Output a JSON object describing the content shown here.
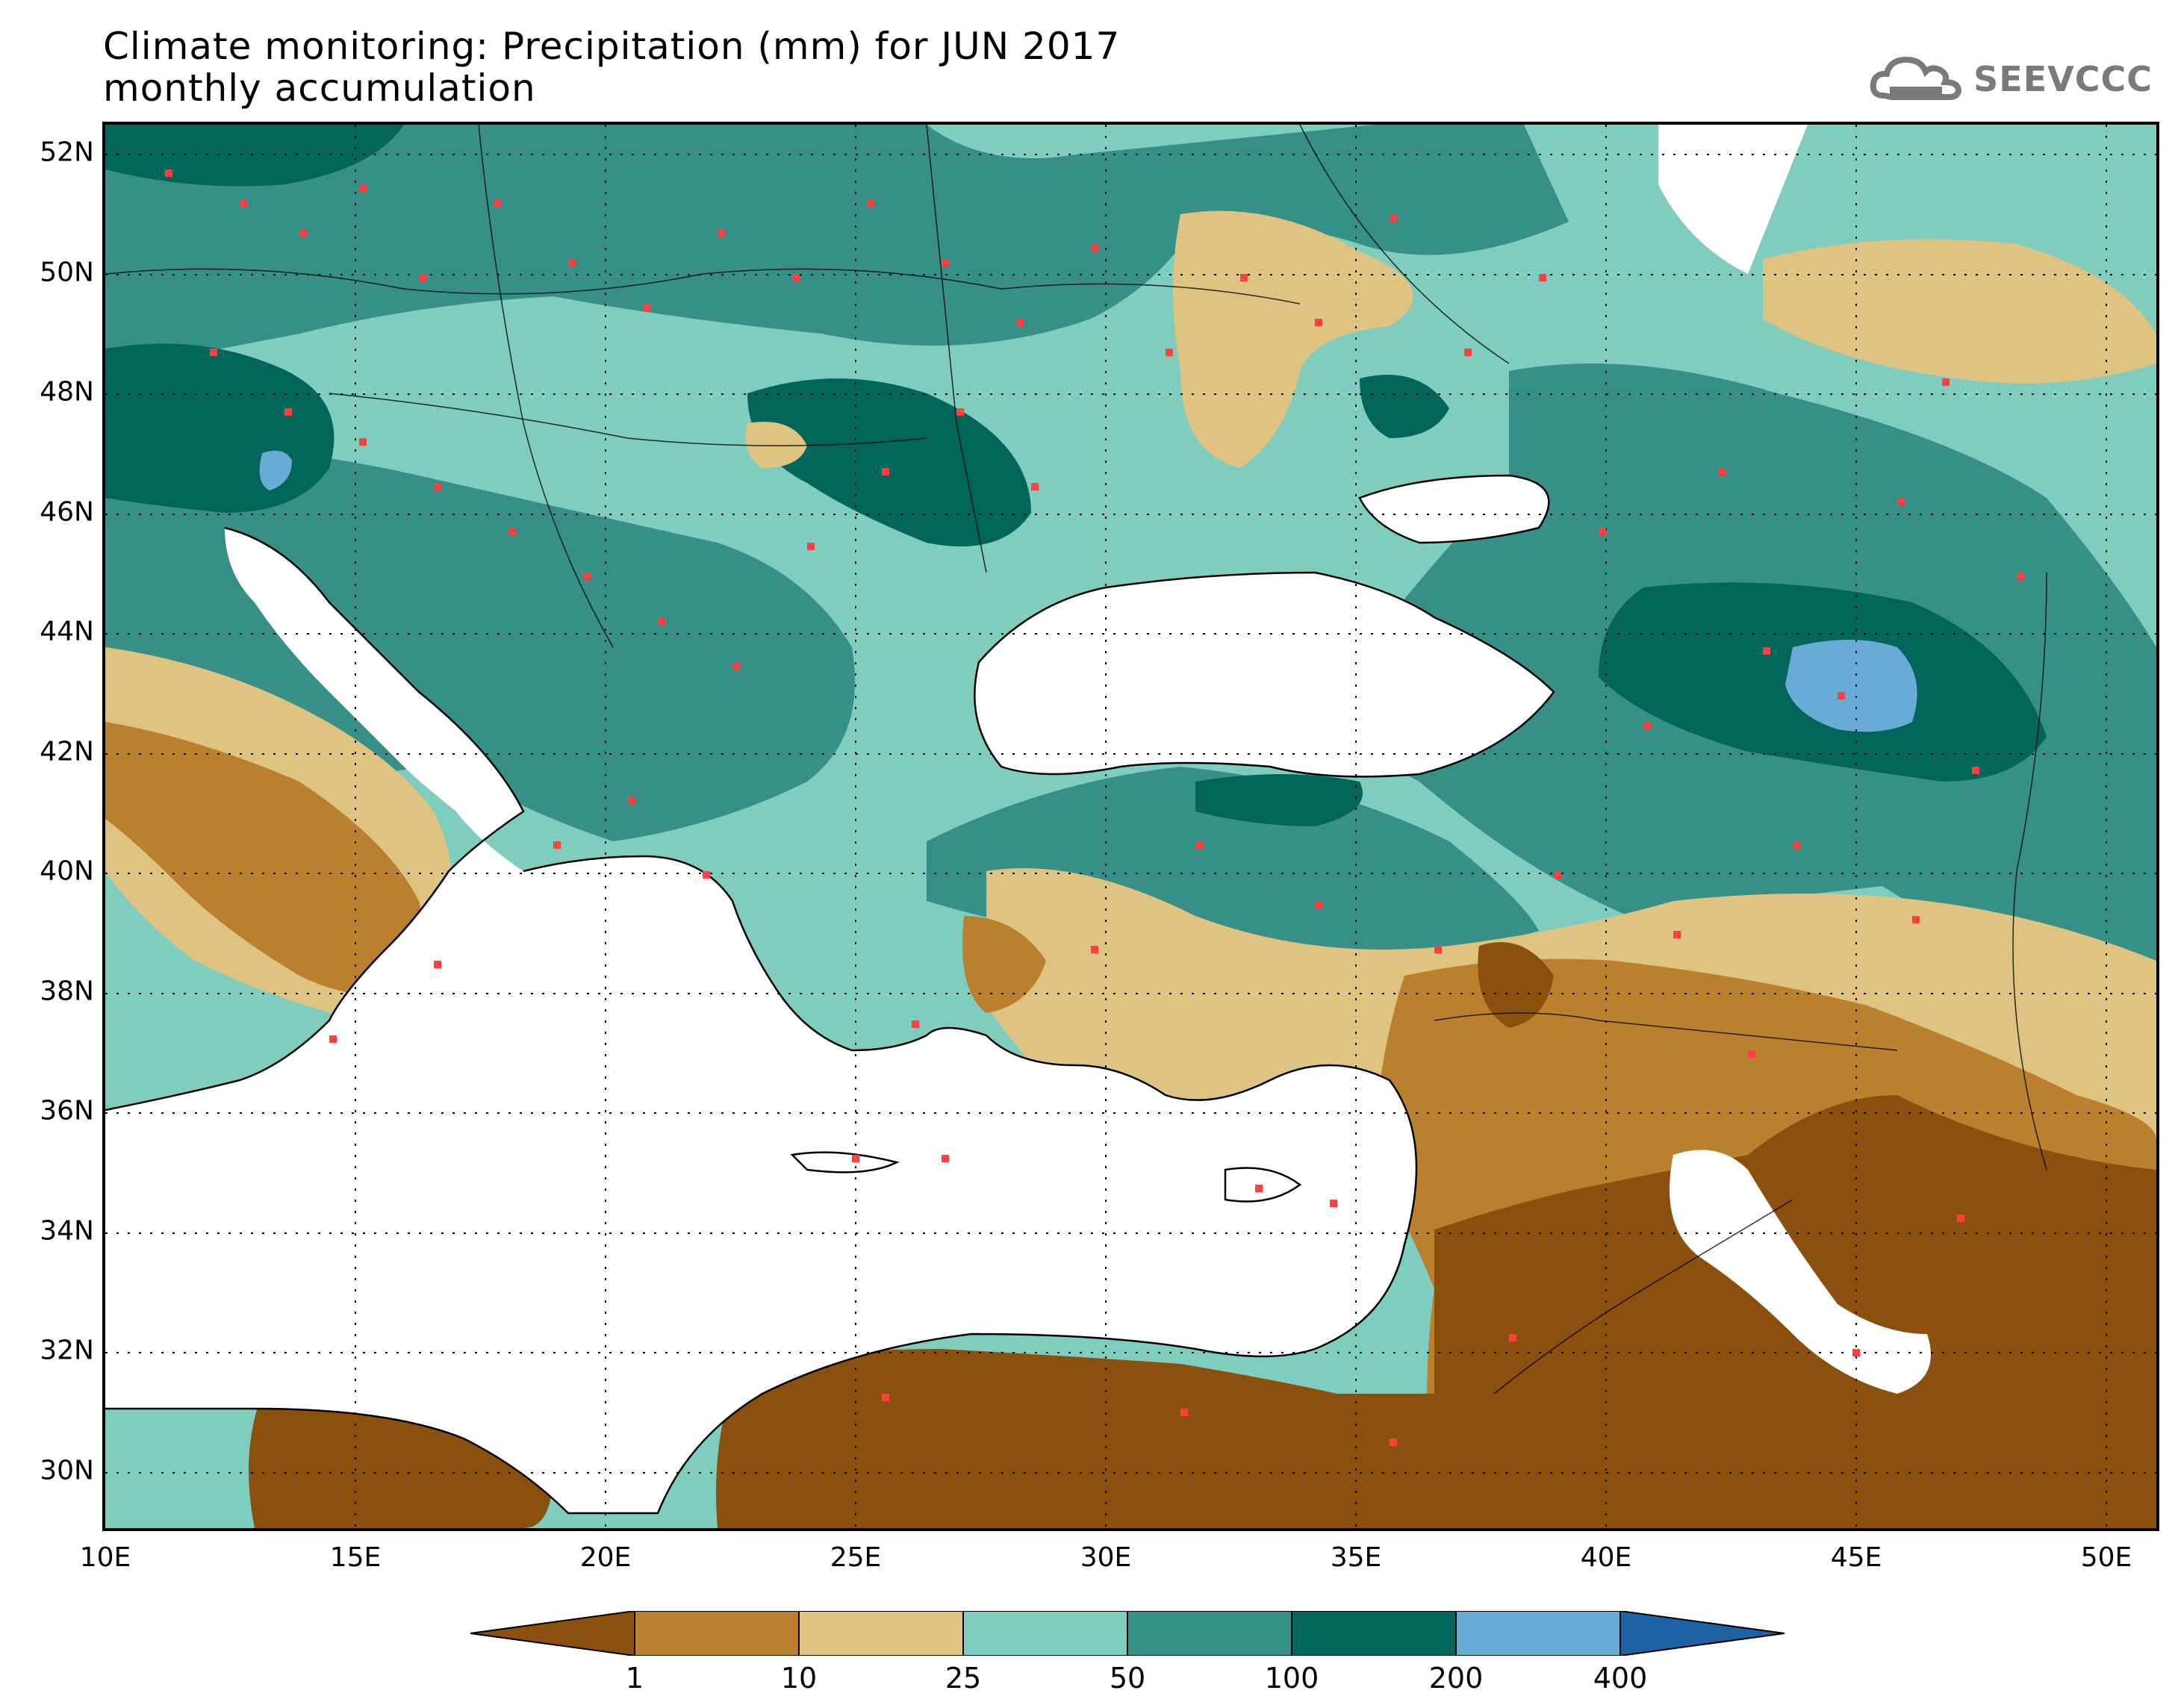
{
  "title": {
    "line1": "Climate monitoring: Precipitation (mm) for JUN 2017",
    "line2": "monthly accumulation"
  },
  "logo": {
    "text": "SEEVCCC",
    "icon": "cloud-icon"
  },
  "map": {
    "lat_labels": [
      "52N",
      "50N",
      "48N",
      "46N",
      "44N",
      "42N",
      "40N",
      "38N",
      "36N",
      "34N",
      "32N",
      "30N"
    ],
    "lat_values": [
      52,
      50,
      48,
      46,
      44,
      42,
      40,
      38,
      36,
      34,
      32,
      30
    ],
    "lon_labels": [
      "10E",
      "15E",
      "20E",
      "25E",
      "30E",
      "35E",
      "40E",
      "45E",
      "50E"
    ],
    "lon_values": [
      10,
      15,
      20,
      25,
      30,
      35,
      40,
      45,
      50
    ],
    "lon_range": [
      10,
      51
    ],
    "lat_range": [
      29,
      52.5
    ],
    "gridlines": "dotted"
  },
  "legend": {
    "boundaries": [
      "1",
      "10",
      "25",
      "50",
      "100",
      "200",
      "400"
    ],
    "colors": [
      "#8b4f0e",
      "#bb802e",
      "#dfc381",
      "#7fcdbf",
      "#369087",
      "#026559",
      "#69abd7",
      "#1d62a2"
    ]
  }
}
